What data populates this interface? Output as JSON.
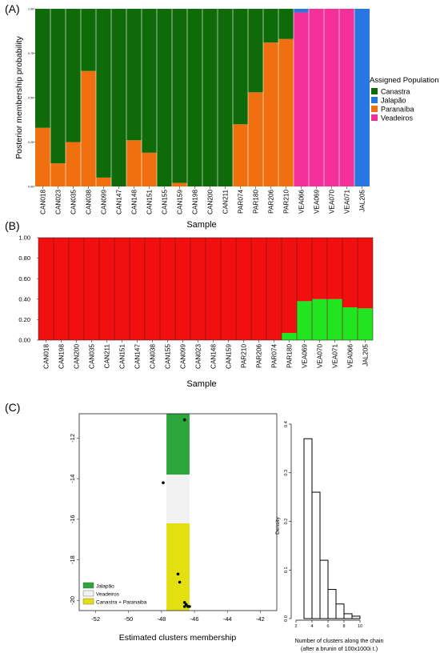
{
  "chart_data": [
    {
      "type": "bar",
      "panel_label": "(A)",
      "xlabel": "Sample",
      "ylabel": "Posterior membership probability",
      "ylim": [
        0,
        1
      ],
      "yticks": [
        "0.00",
        "0.25",
        "0.50",
        "0.75",
        "1.00"
      ],
      "legend_title": "Assigned Population",
      "legend_position": "right",
      "categories": [
        "CAN018",
        "CAN023",
        "CAN035",
        "CAN038",
        "CAN099",
        "CAN147",
        "CAN148",
        "CAN151",
        "CAN155",
        "CAN159",
        "CAN198",
        "CAN200",
        "CAN211",
        "PAR074",
        "PAR180",
        "PAR206",
        "PAR210",
        "VEA066",
        "VEA069",
        "VEA070",
        "VEA071",
        "JAL205"
      ],
      "series": [
        {
          "name": "Paranaíba",
          "color": "#f07010",
          "values": [
            0.33,
            0.13,
            0.25,
            0.65,
            0.05,
            0.0,
            0.26,
            0.19,
            0.0,
            0.02,
            0.0,
            0.0,
            0.0,
            0.35,
            0.53,
            0.81,
            0.83,
            0.0,
            0.0,
            0.0,
            0.0,
            0.0
          ]
        },
        {
          "name": "Canastra",
          "color": "#0f6a0a",
          "values": [
            0.67,
            0.87,
            0.75,
            0.35,
            0.95,
            1.0,
            0.74,
            0.81,
            1.0,
            0.98,
            1.0,
            1.0,
            1.0,
            0.65,
            0.47,
            0.19,
            0.17,
            0.0,
            0.0,
            0.0,
            0.0,
            0.0
          ]
        },
        {
          "name": "Veadeiros",
          "color": "#f4319a",
          "values": [
            0,
            0,
            0,
            0,
            0,
            0,
            0,
            0,
            0,
            0,
            0,
            0,
            0,
            0,
            0,
            0,
            0,
            0.98,
            1.0,
            1.0,
            1.0,
            0.0
          ]
        },
        {
          "name": "Jalapão",
          "color": "#2777e1",
          "values": [
            0,
            0,
            0,
            0,
            0,
            0,
            0,
            0,
            0,
            0,
            0,
            0,
            0,
            0,
            0,
            0,
            0,
            0.02,
            0.0,
            0.0,
            0.0,
            1.0
          ]
        }
      ]
    },
    {
      "type": "bar",
      "panel_label": "(B)",
      "xlabel": "Sample",
      "ylim": [
        0,
        1
      ],
      "yticks": [
        "0.00",
        "0.20",
        "0.40",
        "0.60",
        "0.80",
        "1.00"
      ],
      "categories": [
        "CAN018",
        "CAN198",
        "CAN200",
        "CAN035",
        "CAN211",
        "CAN151",
        "CAN147",
        "CAN038",
        "CAN155",
        "CAN099",
        "CAN023",
        "CAN148",
        "CAN159",
        "PAR210",
        "PAR206",
        "PAR074",
        "PAR180",
        "VEA069",
        "VEA070",
        "VEA071",
        "VEA066",
        "JAL205"
      ],
      "series": [
        {
          "name": "",
          "color": "#22e522",
          "values": [
            0,
            0,
            0,
            0,
            0,
            0,
            0,
            0,
            0,
            0,
            0,
            0,
            0,
            0,
            0,
            0,
            0.07,
            0.38,
            0.4,
            0.4,
            0.32,
            0.31
          ]
        },
        {
          "name": "",
          "color": "#f01010",
          "values": [
            1,
            1,
            1,
            1,
            1,
            1,
            1,
            1,
            1,
            1,
            1,
            1,
            1,
            1,
            1,
            1,
            0.93,
            0.62,
            0.6,
            0.6,
            0.68,
            0.69
          ]
        }
      ]
    },
    {
      "type": "heatmap",
      "panel_label": "(C)",
      "xlabel": "Estimated clusters membership",
      "xlim": [
        -53,
        -41
      ],
      "ylim": [
        -20.5,
        -10.8
      ],
      "xticks": [
        "-52",
        "-50",
        "-48",
        "-46",
        "-44",
        "-42"
      ],
      "yticks": [
        "-12",
        "-14",
        "-16",
        "-18",
        "-20"
      ],
      "legend_position": "bottom-left",
      "regions": [
        {
          "name": "Jalapão",
          "color": "#2aa63a",
          "lon": [
            -47.7,
            -46.3
          ],
          "lat": [
            -13.8,
            -10.8
          ]
        },
        {
          "name": "Veadeiros",
          "color": "#f2f2f2",
          "lon": [
            -47.7,
            -46.3
          ],
          "lat": [
            -16.2,
            -13.8
          ]
        },
        {
          "name": "Canastra + Paranaiba",
          "color": "#e3e012",
          "lon": [
            -47.7,
            -46.3
          ],
          "lat": [
            -20.5,
            -16.2
          ]
        }
      ],
      "points": [
        {
          "x": -46.6,
          "y": -11.1
        },
        {
          "x": -47.9,
          "y": -14.2
        },
        {
          "x": -47.0,
          "y": -18.7
        },
        {
          "x": -46.9,
          "y": -19.1
        },
        {
          "x": -46.6,
          "y": -20.1
        },
        {
          "x": -46.5,
          "y": -20.2
        },
        {
          "x": -46.4,
          "y": -20.3
        },
        {
          "x": -46.6,
          "y": -20.3
        },
        {
          "x": -46.3,
          "y": -20.3
        }
      ]
    },
    {
      "type": "bar",
      "xlabel": "Number of clusters along the chain",
      "xlabel_note": "(after a brunin of 100x1000i t.)",
      "ylabel": "Density",
      "xlim": [
        2,
        10
      ],
      "ylim": [
        0,
        0.4
      ],
      "xticks": [
        "2",
        "4",
        "6",
        "8",
        "10"
      ],
      "yticks": [
        "0.0",
        "0.1",
        "0.2",
        "0.3",
        "0.4"
      ],
      "categories": [
        2,
        3,
        4,
        5,
        6,
        7,
        8,
        9
      ],
      "values": [
        0.0,
        0.37,
        0.26,
        0.12,
        0.06,
        0.03,
        0.01,
        0.005
      ]
    }
  ]
}
